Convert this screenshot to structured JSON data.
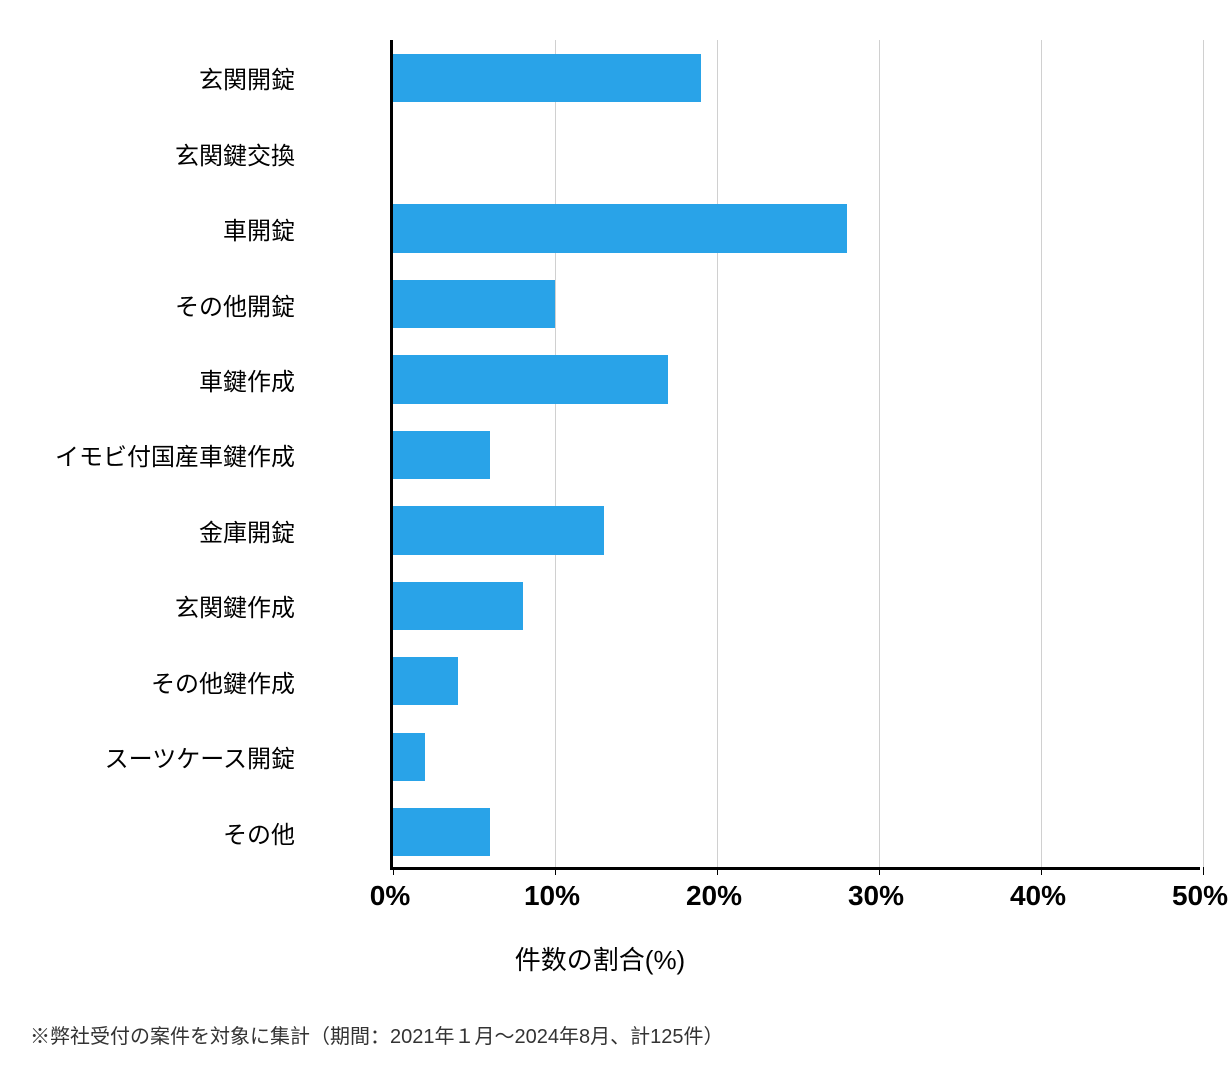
{
  "chart": {
    "type": "horizontal-bar",
    "categories": [
      "玄関開錠",
      "玄関鍵交換",
      "車開錠",
      "その他開錠",
      "車鍵作成",
      "イモビ付国産車鍵作成",
      "金庫開錠",
      "玄関鍵作成",
      "その他鍵作成",
      "スーツケース開錠",
      "その他"
    ],
    "values": [
      19,
      0,
      28,
      10,
      17,
      6,
      13,
      8,
      4,
      2,
      6
    ],
    "bar_color": "#29a3e8",
    "xlim": [
      0,
      50
    ],
    "xtick_step": 10,
    "xtick_labels": [
      "0%",
      "10%",
      "20%",
      "30%",
      "40%",
      "50%"
    ],
    "xlabel": "件数の割合(%)",
    "background_color": "#ffffff",
    "grid_color": "#d0d0d0",
    "axis_color": "#000000",
    "label_fontsize": 24,
    "tick_fontsize": 28,
    "xlabel_fontsize": 26,
    "bar_height_ratio": 0.64
  },
  "footnote": "※弊社受付の案件を対象に集計（期間：2021年１月〜2024年8月、計125件）"
}
